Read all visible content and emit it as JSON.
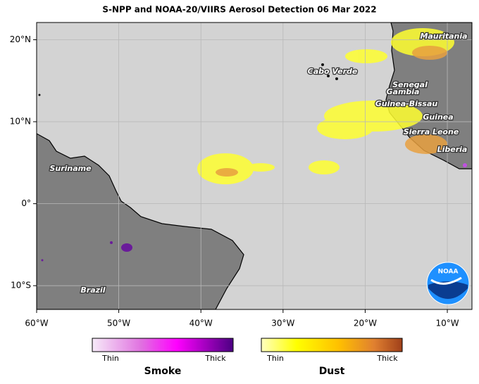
{
  "title": "S-NPP and NOAA-20/VIIRS Aerosol Detection  06 Mar 2022",
  "map": {
    "lon_lim": [
      -60,
      -7
    ],
    "lat_lim": [
      -12.9,
      22.1
    ],
    "lon_ticks": [
      {
        "value": -60,
        "label": "60°W"
      },
      {
        "value": -50,
        "label": "50°W"
      },
      {
        "value": -40,
        "label": "40°W"
      },
      {
        "value": -30,
        "label": "30°W"
      },
      {
        "value": -20,
        "label": "20°W"
      },
      {
        "value": -10,
        "label": "10°W"
      }
    ],
    "lat_ticks": [
      {
        "value": 20,
        "label": "20°N"
      },
      {
        "value": 10,
        "label": "10°N"
      },
      {
        "value": 0,
        "label": "0°"
      },
      {
        "value": -10,
        "label": "10°S"
      }
    ],
    "labels": [
      "Mauritania",
      "Cabo Verde",
      "Senegal",
      "Gambia",
      "Guinea-Bissau",
      "Guinea",
      "Sierra Leone",
      "Liberia",
      "Suriname",
      "Brazil"
    ]
  },
  "legend": {
    "smoke": {
      "title": "Smoke",
      "min_label": "Thin",
      "max_label": "Thick"
    },
    "dust": {
      "title": "Dust",
      "min_label": "Thin",
      "max_label": "Thick"
    }
  },
  "logo": "NOAA"
}
